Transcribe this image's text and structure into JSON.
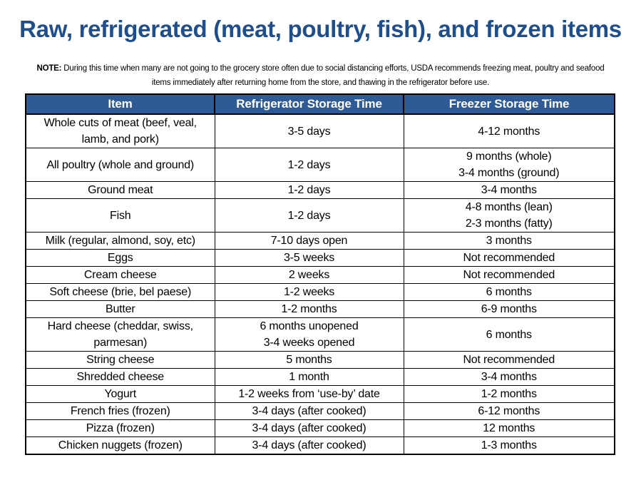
{
  "title": "Raw, refrigerated (meat, poultry, fish), and frozen items",
  "note": {
    "label": "NOTE:",
    "text": " During this time when many are not going to the grocery store often due to social distancing efforts, USDA recommends freezing meat, poultry and seafood items immediately after returning home from the store, and thawing in the refrigerator before use."
  },
  "table": {
    "headers": [
      "Item",
      "Refrigerator Storage Time",
      "Freezer Storage Time"
    ],
    "rows": [
      {
        "item": "Whole cuts of meat (beef, veal, lamb, and pork)",
        "fridge": "3-5 days",
        "freezer": "4-12 months"
      },
      {
        "item": "All poultry (whole and ground)",
        "fridge": "1-2 days",
        "freezer": "9 months (whole)",
        "freezer2": "3-4 months (ground)"
      },
      {
        "item": "Ground meat",
        "fridge": "1-2 days",
        "freezer": "3-4 months"
      },
      {
        "item": "Fish",
        "fridge": "1-2 days",
        "freezer": "4-8 months (lean)",
        "freezer2": "2-3 months (fatty)"
      },
      {
        "item": "Milk (regular, almond, soy, etc)",
        "fridge": "7-10 days open",
        "freezer": "3 months"
      },
      {
        "item": "Eggs",
        "fridge": "3-5 weeks",
        "freezer": "Not recommended"
      },
      {
        "item": "Cream cheese",
        "fridge": "2 weeks",
        "freezer": "Not recommended"
      },
      {
        "item": "Soft cheese (brie, bel paese)",
        "fridge": "1-2 weeks",
        "freezer": "6 months"
      },
      {
        "item": "Butter",
        "fridge": "1-2 months",
        "freezer": "6-9 months"
      },
      {
        "item": "Hard cheese (cheddar, swiss, parmesan)",
        "fridge": "6 months unopened",
        "fridge2": "3-4 weeks opened",
        "freezer": "6 months"
      },
      {
        "item": "String cheese",
        "fridge": "5 months",
        "freezer": "Not recommended"
      },
      {
        "item": "Shredded cheese",
        "fridge": "1 month",
        "freezer": "3-4 months"
      },
      {
        "item": "Yogurt",
        "fridge": "1-2 weeks from ‘use-by’ date",
        "freezer": "1-2 months"
      },
      {
        "item": "French fries (frozen)",
        "fridge": "3-4 days (after cooked)",
        "freezer": "6-12 months"
      },
      {
        "item": "Pizza (frozen)",
        "fridge": "3-4 days (after cooked)",
        "freezer": "12 months"
      },
      {
        "item": "Chicken nuggets (frozen)",
        "fridge": "3-4 days (after cooked)",
        "freezer": "1-3 months"
      }
    ]
  },
  "colors": {
    "title": "#1f4e8c",
    "header_background": "#2e5b95",
    "header_text": "#ffffff"
  }
}
